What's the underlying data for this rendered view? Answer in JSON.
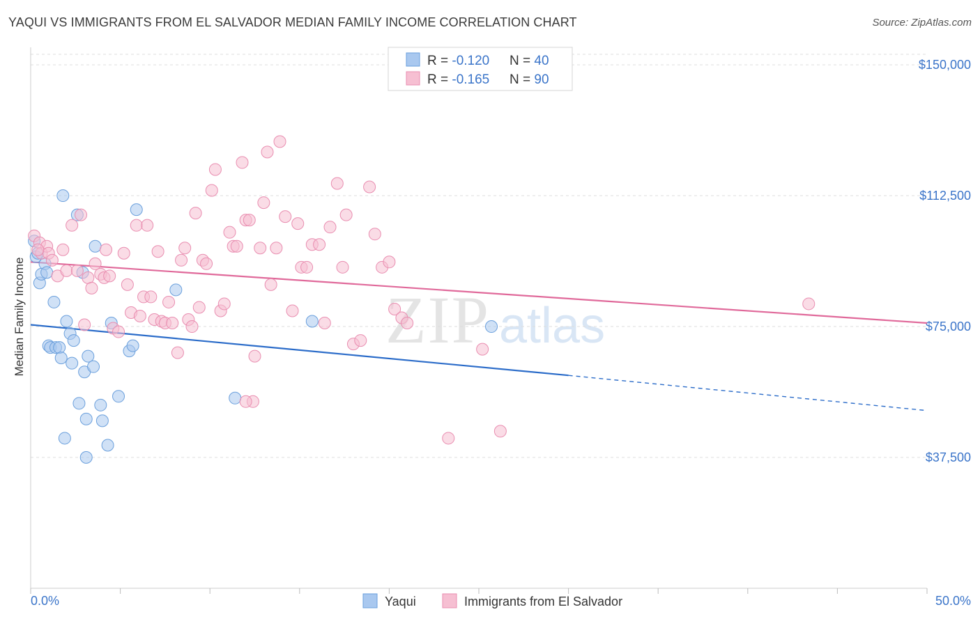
{
  "header": {
    "title": "YAQUI VS IMMIGRANTS FROM EL SALVADOR MEDIAN FAMILY INCOME CORRELATION CHART",
    "source": "Source: ZipAtlas.com"
  },
  "watermark": {
    "zip": "ZIP",
    "atlas": "atlas"
  },
  "colors": {
    "blue_fill": "#a9c8ef",
    "blue_stroke": "#6a9fdc",
    "blue_line": "#2b6cc9",
    "pink_fill": "#f6bfd2",
    "pink_stroke": "#e98db0",
    "pink_line": "#e0699a",
    "axis_text": "#3a74c9",
    "grid": "#dddddd"
  },
  "legend_top": {
    "rows": [
      {
        "r_label": "R = ",
        "r_value": "-0.120",
        "n_label": "N = ",
        "n_value": "40"
      },
      {
        "r_label": "R = ",
        "r_value": "-0.165",
        "n_label": "N = ",
        "n_value": "90"
      }
    ]
  },
  "chart_data": {
    "type": "scatter",
    "title": "YAQUI VS IMMIGRANTS FROM EL SALVADOR MEDIAN FAMILY INCOME CORRELATION CHART",
    "xlabel": "",
    "ylabel": "Median Family Income",
    "xlim": [
      0,
      50
    ],
    "ylim": [
      0,
      155000
    ],
    "x_tick_labels": {
      "min": "0.0%",
      "max": "50.0%"
    },
    "y_ticks": [
      {
        "value": 37500,
        "label": "$37,500"
      },
      {
        "value": 75000,
        "label": "$75,000"
      },
      {
        "value": 112500,
        "label": "$112,500"
      },
      {
        "value": 150000,
        "label": "$150,000"
      }
    ],
    "legend": [
      "Yaqui",
      "Immigrants from El Salvador"
    ],
    "series": [
      {
        "name": "Yaqui",
        "color": "blue",
        "trend": {
          "x0": 0,
          "y0": 75500,
          "x1": 30,
          "y1": 61000,
          "dash_to_x": 50,
          "dash_to_y": 51000
        },
        "points": [
          [
            0.2,
            99500
          ],
          [
            0.3,
            95000
          ],
          [
            0.4,
            96000
          ],
          [
            0.5,
            87500
          ],
          [
            0.6,
            90000
          ],
          [
            0.8,
            93000
          ],
          [
            0.9,
            90500
          ],
          [
            1.0,
            69500
          ],
          [
            1.1,
            69000
          ],
          [
            1.3,
            82000
          ],
          [
            1.4,
            69000
          ],
          [
            1.6,
            69000
          ],
          [
            1.7,
            66000
          ],
          [
            1.8,
            112500
          ],
          [
            2.0,
            76500
          ],
          [
            2.2,
            73000
          ],
          [
            2.3,
            64500
          ],
          [
            2.4,
            71000
          ],
          [
            2.6,
            107000
          ],
          [
            2.7,
            53000
          ],
          [
            2.9,
            90500
          ],
          [
            3.0,
            62000
          ],
          [
            3.1,
            48500
          ],
          [
            3.2,
            66500
          ],
          [
            3.5,
            63500
          ],
          [
            3.6,
            98000
          ],
          [
            3.9,
            52500
          ],
          [
            4.0,
            48000
          ],
          [
            4.3,
            41000
          ],
          [
            4.5,
            76000
          ],
          [
            4.9,
            55000
          ],
          [
            5.5,
            68000
          ],
          [
            5.7,
            69500
          ],
          [
            5.9,
            108500
          ],
          [
            8.1,
            85500
          ],
          [
            11.4,
            54500
          ],
          [
            15.7,
            76500
          ],
          [
            25.7,
            75000
          ],
          [
            1.9,
            43000
          ],
          [
            3.1,
            37500
          ]
        ]
      },
      {
        "name": "Immigrants from El Salvador",
        "color": "pink",
        "trend": {
          "x0": 0,
          "y0": 93500,
          "x1": 50,
          "y1": 76000
        },
        "points": [
          [
            0.2,
            101000
          ],
          [
            0.5,
            99000
          ],
          [
            0.6,
            96000
          ],
          [
            0.9,
            98000
          ],
          [
            1.0,
            96000
          ],
          [
            1.2,
            94000
          ],
          [
            1.5,
            89500
          ],
          [
            1.8,
            97000
          ],
          [
            2.0,
            91000
          ],
          [
            2.3,
            104000
          ],
          [
            2.6,
            91000
          ],
          [
            2.8,
            107000
          ],
          [
            3.0,
            75500
          ],
          [
            3.2,
            89000
          ],
          [
            3.4,
            86000
          ],
          [
            3.6,
            93000
          ],
          [
            3.9,
            90000
          ],
          [
            4.1,
            89000
          ],
          [
            4.2,
            97000
          ],
          [
            4.4,
            89500
          ],
          [
            4.6,
            74500
          ],
          [
            4.9,
            73500
          ],
          [
            5.2,
            96000
          ],
          [
            5.4,
            87000
          ],
          [
            5.6,
            79000
          ],
          [
            5.9,
            104000
          ],
          [
            6.1,
            78000
          ],
          [
            6.3,
            83500
          ],
          [
            6.5,
            104000
          ],
          [
            6.7,
            83500
          ],
          [
            6.9,
            77000
          ],
          [
            7.1,
            96500
          ],
          [
            7.3,
            76500
          ],
          [
            7.5,
            76000
          ],
          [
            7.7,
            82000
          ],
          [
            7.9,
            76000
          ],
          [
            8.2,
            67500
          ],
          [
            8.4,
            94000
          ],
          [
            8.6,
            97500
          ],
          [
            8.8,
            77000
          ],
          [
            9.0,
            75000
          ],
          [
            9.2,
            107500
          ],
          [
            9.4,
            80500
          ],
          [
            9.6,
            94000
          ],
          [
            9.8,
            93000
          ],
          [
            10.1,
            114000
          ],
          [
            10.3,
            120000
          ],
          [
            10.6,
            79500
          ],
          [
            10.8,
            81500
          ],
          [
            11.1,
            102000
          ],
          [
            11.3,
            98000
          ],
          [
            11.5,
            98000
          ],
          [
            11.8,
            122000
          ],
          [
            12.0,
            105500
          ],
          [
            12.2,
            105500
          ],
          [
            12.5,
            66500
          ],
          [
            12.8,
            97500
          ],
          [
            13.0,
            110500
          ],
          [
            13.2,
            125000
          ],
          [
            13.4,
            87000
          ],
          [
            13.7,
            97500
          ],
          [
            13.9,
            128000
          ],
          [
            14.2,
            106500
          ],
          [
            14.6,
            79500
          ],
          [
            14.9,
            104500
          ],
          [
            15.1,
            92000
          ],
          [
            15.4,
            92000
          ],
          [
            15.7,
            98500
          ],
          [
            16.1,
            98500
          ],
          [
            16.4,
            76000
          ],
          [
            16.7,
            103500
          ],
          [
            17.1,
            116000
          ],
          [
            17.4,
            92000
          ],
          [
            17.6,
            107000
          ],
          [
            18.0,
            70000
          ],
          [
            18.4,
            71000
          ],
          [
            18.9,
            115000
          ],
          [
            19.2,
            101500
          ],
          [
            19.6,
            92000
          ],
          [
            20.0,
            93500
          ],
          [
            20.3,
            80000
          ],
          [
            20.7,
            77500
          ],
          [
            21.0,
            76000
          ],
          [
            12.4,
            53500
          ],
          [
            12.0,
            53500
          ],
          [
            23.3,
            43000
          ],
          [
            25.2,
            68500
          ],
          [
            26.2,
            45000
          ],
          [
            43.4,
            81500
          ],
          [
            0.4,
            97000
          ]
        ]
      }
    ]
  }
}
